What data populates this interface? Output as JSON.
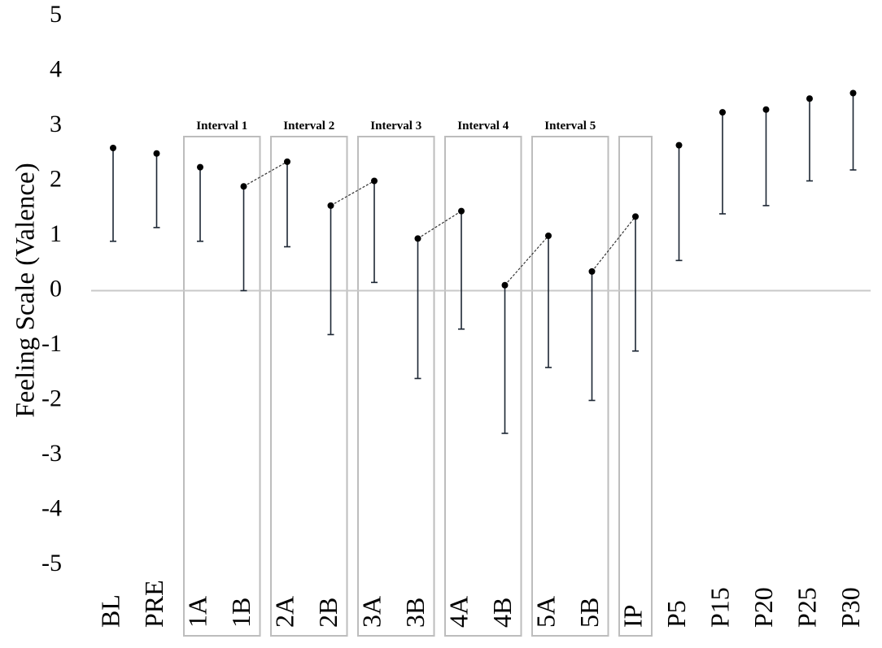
{
  "chart_data": {
    "type": "scatter",
    "ylabel": "Feeling Scale (Valence)",
    "xlabel": "",
    "ylim": [
      -5,
      5
    ],
    "yticks": [
      5,
      4,
      3,
      2,
      1,
      0,
      -1,
      -2,
      -3,
      -4,
      -5
    ],
    "grid": false,
    "zero_line": true,
    "categories": [
      "BL",
      "PRE",
      "1A",
      "1B",
      "2A",
      "2B",
      "3A",
      "3B",
      "4A",
      "4B",
      "5A",
      "5B",
      "IP",
      "P5",
      "P15",
      "P20",
      "P25",
      "P30"
    ],
    "series": [
      {
        "values": [
          2.6,
          2.5,
          2.25,
          1.9,
          2.35,
          1.55,
          2.0,
          0.95,
          1.45,
          0.1,
          1.0,
          0.35,
          1.35,
          2.65,
          3.25,
          3.3,
          3.5,
          3.6
        ],
        "lower": [
          0.9,
          1.15,
          0.9,
          0.0,
          0.8,
          -0.8,
          0.15,
          -1.6,
          -0.7,
          -2.6,
          -1.4,
          -2.0,
          -1.1,
          0.55,
          1.4,
          1.55,
          2.0,
          2.2
        ]
      }
    ],
    "intervals": [
      {
        "label": "Interval 1",
        "start": "1A",
        "end": "1B"
      },
      {
        "label": "Interval 2",
        "start": "2A",
        "end": "2B"
      },
      {
        "label": "Interval 3",
        "start": "3A",
        "end": "3B"
      },
      {
        "label": "Interval 4",
        "start": "4A",
        "end": "4B"
      },
      {
        "label": "Interval 5",
        "start": "5A",
        "end": "5B"
      },
      {
        "label": "",
        "start": "IP",
        "end": "IP"
      }
    ],
    "connectors": [
      [
        "1B",
        "2A"
      ],
      [
        "2B",
        "3A"
      ],
      [
        "3B",
        "4A"
      ],
      [
        "4B",
        "5A"
      ],
      [
        "5B",
        "IP"
      ]
    ],
    "colors": {
      "marker": "#000000",
      "errorbar": "#1c2633",
      "box": "#bdbdbd",
      "zero_line": "#c8c8c8",
      "connector": "#333333"
    }
  }
}
